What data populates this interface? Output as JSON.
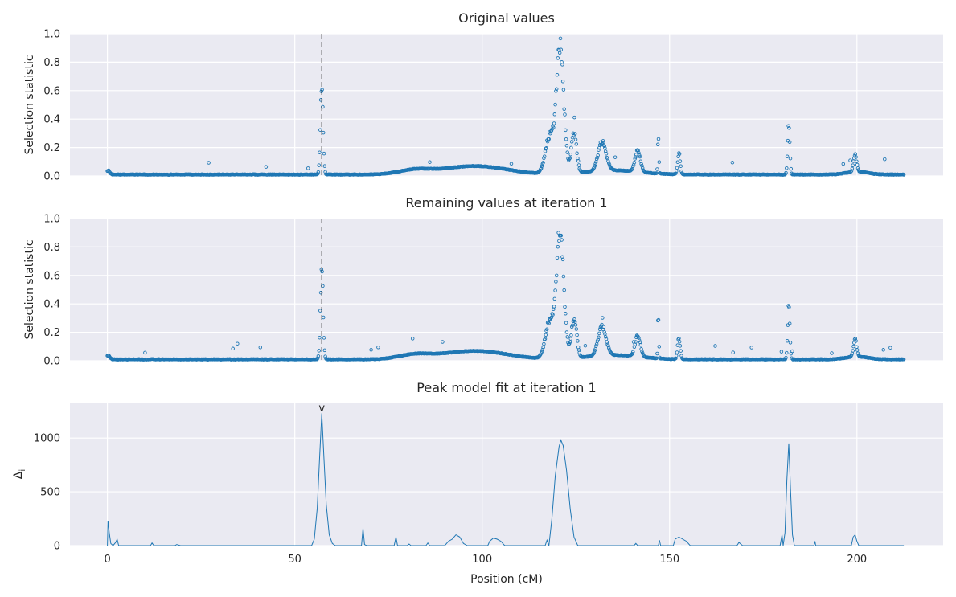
{
  "chart_data": [
    {
      "type": "scatter",
      "title": "Original values",
      "xlabel": "",
      "ylabel": "Selection statistic",
      "xlim": [
        -10,
        223
      ],
      "ylim": [
        0,
        1.0
      ],
      "yticks": [
        "0.0",
        "0.2",
        "0.4",
        "0.6",
        "0.8",
        "1.0"
      ],
      "grid": true,
      "marker": "open-circle",
      "color": "#1f77b4",
      "vline_x": 57.2,
      "peaks": [
        {
          "x": 0.2,
          "h": 0.03,
          "w": 0.6
        },
        {
          "x": 57.2,
          "h": 0.7,
          "w": 0.5
        },
        {
          "x": 120.8,
          "h": 0.95,
          "w": 1.4
        },
        {
          "x": 124.5,
          "h": 0.3,
          "w": 1.0
        },
        {
          "x": 118.0,
          "h": 0.28,
          "w": 1.6
        },
        {
          "x": 132.0,
          "h": 0.22,
          "w": 1.5
        },
        {
          "x": 141.5,
          "h": 0.16,
          "w": 1.0
        },
        {
          "x": 147.0,
          "h": 0.3,
          "w": 0.2
        },
        {
          "x": 152.5,
          "h": 0.16,
          "w": 0.5
        },
        {
          "x": 181.8,
          "h": 0.4,
          "w": 0.4
        },
        {
          "x": 199.5,
          "h": 0.13,
          "w": 0.6
        }
      ]
    },
    {
      "type": "scatter",
      "title": "Remaining values at iteration 1",
      "xlabel": "",
      "ylabel": "Selection statistic",
      "xlim": [
        -10,
        223
      ],
      "ylim": [
        0,
        1.0
      ],
      "yticks": [
        "0.0",
        "0.2",
        "0.4",
        "0.6",
        "0.8",
        "1.0"
      ],
      "grid": true,
      "marker": "open-circle",
      "color": "#1f77b4",
      "vline_x": 57.2,
      "peaks": [
        {
          "x": 0.2,
          "h": 0.03,
          "w": 0.6
        },
        {
          "x": 57.2,
          "h": 0.7,
          "w": 0.5
        },
        {
          "x": 120.8,
          "h": 0.95,
          "w": 1.4
        },
        {
          "x": 124.5,
          "h": 0.3,
          "w": 1.0
        },
        {
          "x": 118.0,
          "h": 0.28,
          "w": 1.6
        },
        {
          "x": 132.0,
          "h": 0.22,
          "w": 1.5
        },
        {
          "x": 141.5,
          "h": 0.16,
          "w": 1.0
        },
        {
          "x": 147.0,
          "h": 0.3,
          "w": 0.2
        },
        {
          "x": 152.5,
          "h": 0.16,
          "w": 0.5
        },
        {
          "x": 181.8,
          "h": 0.4,
          "w": 0.4
        },
        {
          "x": 199.5,
          "h": 0.13,
          "w": 0.6
        }
      ]
    },
    {
      "type": "line",
      "title": "Peak model fit at iteration 1",
      "xlabel": "Position (cM)",
      "ylabel": "Δ",
      "ylabel_subscript": "i",
      "xlim": [
        -10,
        223
      ],
      "ylim": [
        0,
        1330
      ],
      "xticks": [
        0,
        50,
        100,
        150,
        200
      ],
      "xtick_labels": [
        "0",
        "50",
        "100",
        "150",
        "200"
      ],
      "yticks": [
        0,
        500,
        1000
      ],
      "ytick_labels": [
        "0",
        "500",
        "1000"
      ],
      "grid": true,
      "color": "#1f77b4",
      "peak_marker": {
        "x": 57.2,
        "symbol": "v"
      },
      "points": [
        [
          0.0,
          0
        ],
        [
          0.15,
          230
        ],
        [
          0.5,
          120
        ],
        [
          0.9,
          20
        ],
        [
          1.5,
          0
        ],
        [
          2.2,
          30
        ],
        [
          2.6,
          60
        ],
        [
          3.0,
          0
        ],
        [
          11.5,
          0
        ],
        [
          11.9,
          25
        ],
        [
          12.4,
          0
        ],
        [
          18.0,
          0
        ],
        [
          18.5,
          10
        ],
        [
          19.5,
          0
        ],
        [
          54.5,
          0
        ],
        [
          55.2,
          60
        ],
        [
          56.0,
          350
        ],
        [
          56.6,
          800
        ],
        [
          57.2,
          1230
        ],
        [
          57.8,
          800
        ],
        [
          58.4,
          380
        ],
        [
          59.2,
          100
        ],
        [
          60.0,
          20
        ],
        [
          60.8,
          0
        ],
        [
          67.8,
          0
        ],
        [
          68.2,
          160
        ],
        [
          68.6,
          10
        ],
        [
          69.2,
          0
        ],
        [
          76.5,
          0
        ],
        [
          77.0,
          80
        ],
        [
          77.4,
          0
        ],
        [
          80.0,
          0
        ],
        [
          80.5,
          15
        ],
        [
          81.0,
          0
        ],
        [
          85.0,
          0
        ],
        [
          85.5,
          25
        ],
        [
          86.0,
          0
        ],
        [
          90.0,
          0
        ],
        [
          91.0,
          40
        ],
        [
          92.0,
          60
        ],
        [
          93.0,
          100
        ],
        [
          94.0,
          80
        ],
        [
          95.0,
          20
        ],
        [
          96.0,
          0
        ],
        [
          101.5,
          0
        ],
        [
          102.0,
          40
        ],
        [
          103.0,
          70
        ],
        [
          104.0,
          60
        ],
        [
          105.0,
          40
        ],
        [
          106.0,
          0
        ],
        [
          116.8,
          0
        ],
        [
          117.3,
          50
        ],
        [
          117.8,
          0
        ],
        [
          117.8,
          0
        ],
        [
          118.6,
          250
        ],
        [
          119.5,
          650
        ],
        [
          120.5,
          920
        ],
        [
          121.0,
          980
        ],
        [
          121.6,
          930
        ],
        [
          122.5,
          700
        ],
        [
          123.5,
          340
        ],
        [
          124.5,
          80
        ],
        [
          125.5,
          0
        ],
        [
          140.5,
          0
        ],
        [
          141.0,
          20
        ],
        [
          141.5,
          0
        ],
        [
          147.0,
          0
        ],
        [
          147.3,
          50
        ],
        [
          147.6,
          0
        ],
        [
          151.0,
          0
        ],
        [
          151.5,
          60
        ],
        [
          152.5,
          80
        ],
        [
          153.5,
          60
        ],
        [
          154.5,
          40
        ],
        [
          155.5,
          0
        ],
        [
          168.0,
          0
        ],
        [
          168.5,
          30
        ],
        [
          169.5,
          0
        ],
        [
          179.5,
          0
        ],
        [
          180.0,
          100
        ],
        [
          180.3,
          0
        ],
        [
          180.8,
          120
        ],
        [
          181.3,
          600
        ],
        [
          181.8,
          950
        ],
        [
          182.3,
          500
        ],
        [
          182.8,
          100
        ],
        [
          183.3,
          0
        ],
        [
          188.5,
          0
        ],
        [
          188.8,
          40
        ],
        [
          189.0,
          0
        ],
        [
          198.5,
          0
        ],
        [
          199.0,
          80
        ],
        [
          199.5,
          100
        ],
        [
          200.0,
          40
        ],
        [
          200.5,
          0
        ],
        [
          212.5,
          0
        ]
      ]
    }
  ]
}
